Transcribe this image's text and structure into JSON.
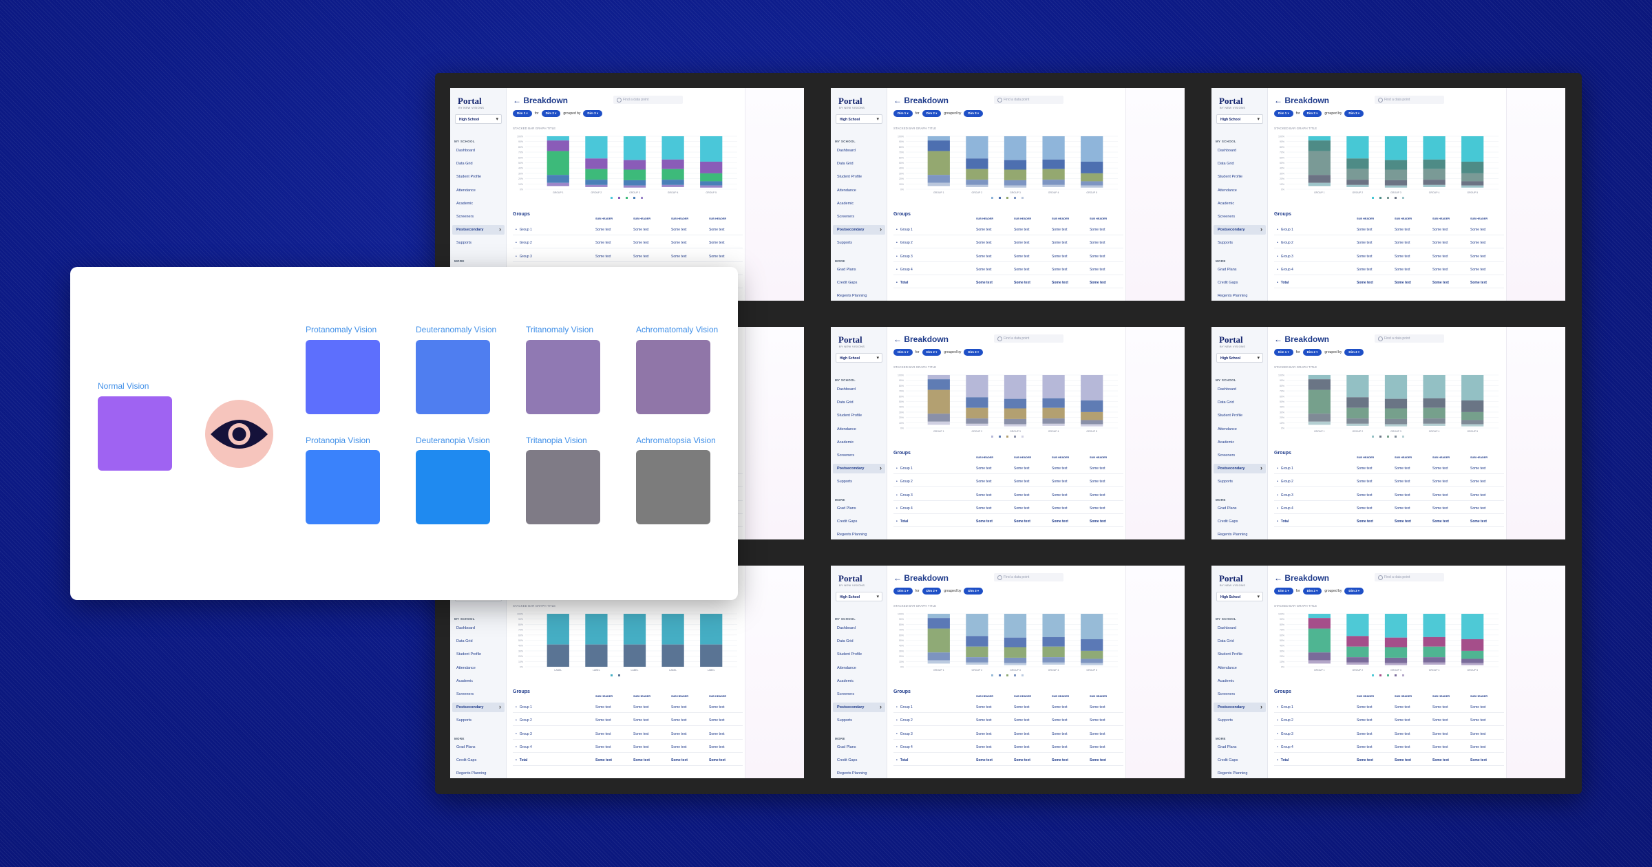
{
  "screen": {
    "app_name": "Portal",
    "app_subtitle": "BY NEW VISIONS",
    "school_select": "High School",
    "page_title": "Breakdown",
    "search_placeholder": "Find a data point",
    "filter": {
      "dim1": "Dim 1",
      "for": "for",
      "dim2": "Dim 2",
      "grouped_by": "grouped by",
      "dim3": "Dim 3"
    },
    "chart_title": "STACKED BAR GRAPH TITLE",
    "section_my_school": "MY SCHOOL",
    "section_more": "MORE",
    "nav_items": [
      "Dashboard",
      "Data Grid",
      "Student Profile",
      "Attendance",
      "Academic",
      "Screeners",
      "Postsecondary",
      "Supports"
    ],
    "more_items": [
      "Grad Plans",
      "Credit Gaps",
      "Regents Planning"
    ],
    "groups_title": "Groups",
    "sub_header": "SUB HEADER",
    "rows": [
      "Group 1",
      "Group 2",
      "Group 3",
      "Group 4",
      "Total"
    ],
    "cell": "Some text"
  },
  "vision": {
    "normal": {
      "label": "Normal Vision",
      "color": "#9f63f2"
    },
    "eye_icon": "eye-icon",
    "top_row": [
      {
        "label": "Protanomaly Vision",
        "color": "#5d6ffd"
      },
      {
        "label": "Deuteranomaly Vision",
        "color": "#4f7ef0"
      },
      {
        "label": "Tritanomaly Vision",
        "color": "#9079b3"
      },
      {
        "label": "Achromatomaly Vision",
        "color": "#9076a8"
      }
    ],
    "bottom_row": [
      {
        "label": "Protanopia Vision",
        "color": "#3a82fb"
      },
      {
        "label": "Deuteranopia Vision",
        "color": "#1f8af0"
      },
      {
        "label": "Tritanopia Vision",
        "color": "#7f7b86"
      },
      {
        "label": "Achromatopsia Vision",
        "color": "#7c7c7c"
      }
    ]
  },
  "chart_data": [
    {
      "type": "bar",
      "stacked": true,
      "palette": "normal",
      "categories": [
        "GROUP 1",
        "GROUP 2",
        "GROUP 3",
        "GROUP 4",
        "GROUP 5"
      ],
      "colors": [
        "#4ac7d9",
        "#8a5cb8",
        "#3dba7a",
        "#4a7fb8",
        "#9b86c9"
      ],
      "values": [
        [
          8,
          42,
          45,
          44,
          48
        ],
        [
          20,
          20,
          18,
          18,
          22
        ],
        [
          45,
          20,
          20,
          20,
          15
        ],
        [
          15,
          10,
          10,
          10,
          8
        ],
        [
          6,
          4,
          4,
          4,
          4
        ]
      ]
    },
    {
      "type": "bar",
      "stacked": true,
      "palette": "protanomaly",
      "categories": [
        "GROUP 1",
        "GROUP 2",
        "GROUP 3",
        "GROUP 4",
        "GROUP 5"
      ],
      "colors": [
        "#8fb5da",
        "#4d6fb0",
        "#94a870",
        "#7d95c2",
        "#b9c6dc"
      ],
      "values": [
        [
          8,
          42,
          45,
          44,
          48
        ],
        [
          20,
          20,
          18,
          18,
          22
        ],
        [
          45,
          20,
          20,
          20,
          15
        ],
        [
          15,
          10,
          10,
          10,
          8
        ],
        [
          6,
          4,
          4,
          4,
          4
        ]
      ]
    },
    {
      "type": "bar",
      "stacked": true,
      "palette": "deuteranomaly",
      "categories": [
        "GROUP 1",
        "GROUP 2",
        "GROUP 3",
        "GROUP 4",
        "GROUP 5"
      ],
      "colors": [
        "#47c8d5",
        "#4e8b86",
        "#7a9a96",
        "#6c7384",
        "#9dc4c9"
      ],
      "values": [
        [
          8,
          42,
          45,
          44,
          48
        ],
        [
          20,
          20,
          18,
          18,
          22
        ],
        [
          45,
          20,
          20,
          20,
          15
        ],
        [
          15,
          10,
          10,
          10,
          8
        ],
        [
          6,
          4,
          4,
          4,
          4
        ]
      ]
    },
    {
      "type": "bar",
      "stacked": true,
      "palette": "tritanomaly",
      "categories": [
        "GROUP 1",
        "GROUP 2",
        "GROUP 3",
        "GROUP 4",
        "GROUP 5"
      ],
      "colors": [
        "#b6b8d8",
        "#5f7cb4",
        "#b3a071",
        "#8a90a8",
        "#d0d0e2"
      ],
      "values": [
        [
          8,
          42,
          45,
          44,
          48
        ],
        [
          20,
          20,
          18,
          18,
          22
        ],
        [
          45,
          20,
          20,
          20,
          15
        ],
        [
          15,
          10,
          10,
          10,
          8
        ],
        [
          6,
          4,
          4,
          4,
          4
        ]
      ]
    },
    {
      "type": "bar",
      "stacked": true,
      "palette": "achromatomaly",
      "categories": [
        "GROUP 1",
        "GROUP 2",
        "GROUP 3",
        "GROUP 4",
        "GROUP 5"
      ],
      "colors": [
        "#93c0c4",
        "#6a7585",
        "#76a08c",
        "#7f8a96",
        "#b4cfd2"
      ],
      "values": [
        [
          8,
          42,
          45,
          44,
          48
        ],
        [
          20,
          20,
          18,
          18,
          22
        ],
        [
          45,
          20,
          20,
          20,
          15
        ],
        [
          15,
          10,
          10,
          10,
          8
        ],
        [
          6,
          4,
          4,
          4,
          4
        ]
      ]
    },
    {
      "type": "bar",
      "stacked": true,
      "palette": "achromatopsia",
      "categories": [
        "LABEL",
        "LABEL",
        "LABEL",
        "LABEL",
        "LABEL"
      ],
      "colors": [
        "#45aec4",
        "#5a7494"
      ],
      "values": [
        [
          58,
          58,
          58,
          58,
          58
        ],
        [
          42,
          42,
          42,
          42,
          42
        ]
      ]
    },
    {
      "type": "bar",
      "stacked": true,
      "palette": "tritanopia",
      "categories": [
        "GROUP 1",
        "GROUP 2",
        "GROUP 3",
        "GROUP 4",
        "GROUP 5"
      ],
      "colors": [
        "#97bbd7",
        "#5b79b6",
        "#8faa76",
        "#7d94c0",
        "#bccbe0"
      ],
      "values": [
        [
          8,
          42,
          45,
          44,
          48
        ],
        [
          20,
          20,
          18,
          18,
          22
        ],
        [
          45,
          20,
          20,
          20,
          15
        ],
        [
          15,
          10,
          10,
          10,
          8
        ],
        [
          6,
          4,
          4,
          4,
          4
        ]
      ]
    },
    {
      "type": "bar",
      "stacked": true,
      "palette": "protanopia",
      "categories": [
        "GROUP 1",
        "GROUP 2",
        "GROUP 3",
        "GROUP 4",
        "GROUP 5"
      ],
      "colors": [
        "#4ec9d6",
        "#a54e8a",
        "#4fb592",
        "#7a6b9a",
        "#b3a6c8"
      ],
      "values": [
        [
          8,
          42,
          45,
          44,
          48
        ],
        [
          20,
          20,
          18,
          18,
          22
        ],
        [
          45,
          20,
          20,
          20,
          15
        ],
        [
          15,
          10,
          10,
          10,
          8
        ],
        [
          6,
          4,
          4,
          4,
          4
        ]
      ]
    }
  ]
}
